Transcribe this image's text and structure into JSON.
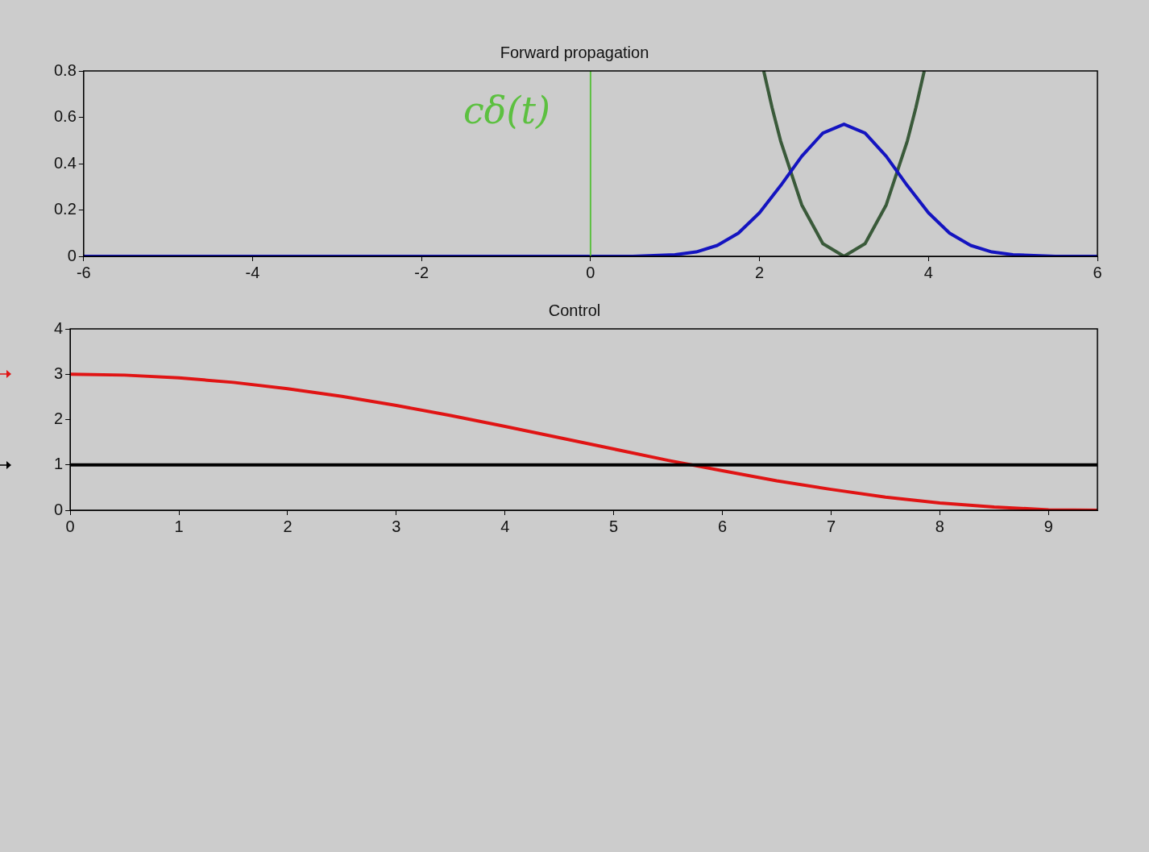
{
  "chart_data": [
    {
      "type": "line",
      "title": "Forward propagation",
      "xlim": [
        -6,
        6
      ],
      "ylim": [
        0,
        0.8
      ],
      "xticks": [
        -6,
        -4,
        -2,
        0,
        2,
        4,
        6
      ],
      "yticks": [
        0,
        0.2,
        0.4,
        0.6,
        0.8
      ],
      "grid": false,
      "series": [
        {
          "color": "#1414c0",
          "x": [
            -6,
            0,
            0.5,
            1,
            1.25,
            1.5,
            1.75,
            2,
            2.25,
            2.5,
            2.75,
            3,
            3.25,
            3.5,
            3.75,
            4,
            4.25,
            4.5,
            4.75,
            5,
            5.5,
            6
          ],
          "values": [
            0,
            0,
            0,
            0.007,
            0.019,
            0.047,
            0.1,
            0.188,
            0.305,
            0.432,
            0.532,
            0.57,
            0.532,
            0.432,
            0.305,
            0.188,
            0.1,
            0.047,
            0.019,
            0.007,
            0,
            0
          ]
        },
        {
          "color": "#3a5a3a",
          "x": [
            2.05,
            2.15,
            2.25,
            2.5,
            2.75,
            3,
            3.25,
            3.5,
            3.75,
            3.85,
            3.95
          ],
          "values": [
            0.8,
            0.64,
            0.498,
            0.222,
            0.055,
            0,
            0.055,
            0.222,
            0.498,
            0.64,
            0.8
          ]
        }
      ],
      "ref_lines": [
        {
          "axis": "x",
          "value": 0,
          "label": "cδ(t)",
          "color": "#5cc040"
        }
      ]
    },
    {
      "type": "line",
      "title": "Control",
      "xlim": [
        0,
        9.45
      ],
      "ylim": [
        0,
        4
      ],
      "xticks": [
        0,
        1,
        2,
        3,
        4,
        5,
        6,
        7,
        8,
        9
      ],
      "yticks": [
        0,
        1,
        2,
        3,
        4
      ],
      "grid": false,
      "series": [
        {
          "color": "#e01414",
          "x": [
            0,
            0.5,
            1,
            1.5,
            2,
            2.5,
            3,
            3.5,
            4,
            4.5,
            5,
            5.5,
            6,
            6.5,
            7,
            7.5,
            8,
            8.5,
            9,
            9.45
          ],
          "values": [
            3,
            2.98,
            2.92,
            2.82,
            2.68,
            2.51,
            2.31,
            2.09,
            1.85,
            1.6,
            1.35,
            1.1,
            0.87,
            0.65,
            0.46,
            0.29,
            0.16,
            0.07,
            0.01,
            0
          ]
        }
      ],
      "ref_lines": [
        {
          "axis": "y",
          "value": 1,
          "color": "#000000"
        }
      ]
    }
  ]
}
